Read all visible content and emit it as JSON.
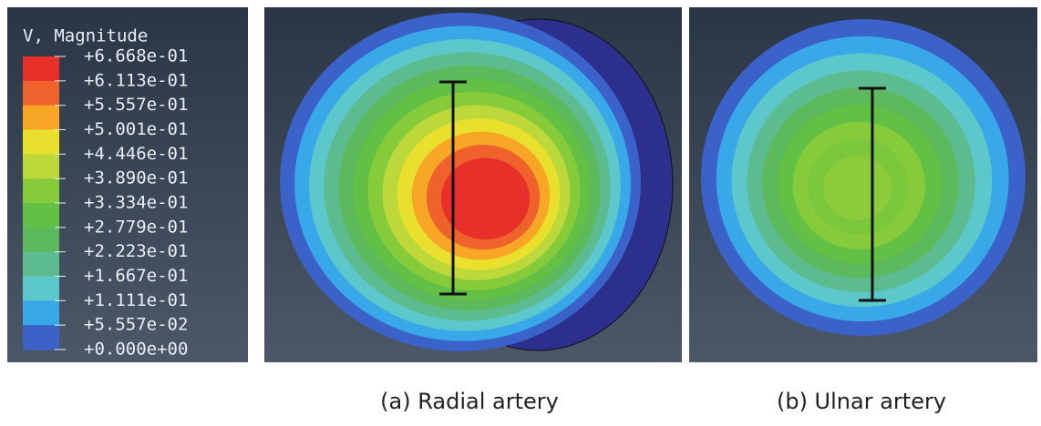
{
  "legend": {
    "title": "V, Magnitude",
    "labels": [
      "+6.668e-01",
      "+6.113e-01",
      "+5.557e-01",
      "+5.001e-01",
      "+4.446e-01",
      "+3.890e-01",
      "+3.334e-01",
      "+2.779e-01",
      "+2.223e-01",
      "+1.667e-01",
      "+1.111e-01",
      "+5.557e-02",
      "+0.000e+00"
    ],
    "colors": [
      "#e8302a",
      "#f0622c",
      "#f7a626",
      "#e8e02c",
      "#bcd83a",
      "#86cc3a",
      "#62c044",
      "#5cba5c",
      "#5cbc90",
      "#5cc8cc",
      "#38a8e8",
      "#3a62c8"
    ]
  },
  "panels": [
    {
      "caption": "(a) Radial artery"
    },
    {
      "caption": "(b) Ulnar artery"
    }
  ]
}
